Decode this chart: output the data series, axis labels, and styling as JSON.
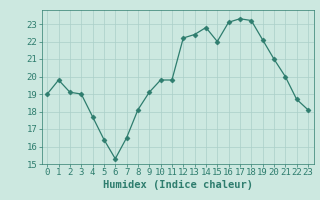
{
  "x": [
    0,
    1,
    2,
    3,
    4,
    5,
    6,
    7,
    8,
    9,
    10,
    11,
    12,
    13,
    14,
    15,
    16,
    17,
    18,
    19,
    20,
    21,
    22,
    23
  ],
  "y": [
    19,
    19.8,
    19.1,
    19.0,
    17.7,
    16.4,
    15.3,
    16.5,
    18.1,
    19.1,
    19.8,
    19.8,
    22.2,
    22.4,
    22.8,
    22.0,
    23.1,
    23.3,
    23.2,
    22.1,
    21.0,
    20.0,
    18.7,
    18.1
  ],
  "xlabel": "Humidex (Indice chaleur)",
  "line_color": "#2e7d6e",
  "marker": "D",
  "marker_size": 2.5,
  "bg_color": "#cce8e0",
  "grid_color": "#aacfc8",
  "ylim": [
    15,
    23.8
  ],
  "yticks": [
    15,
    16,
    17,
    18,
    19,
    20,
    21,
    22,
    23
  ],
  "xticks": [
    0,
    1,
    2,
    3,
    4,
    5,
    6,
    7,
    8,
    9,
    10,
    11,
    12,
    13,
    14,
    15,
    16,
    17,
    18,
    19,
    20,
    21,
    22,
    23
  ],
  "tick_fontsize": 6.5,
  "xlabel_fontsize": 7.5
}
